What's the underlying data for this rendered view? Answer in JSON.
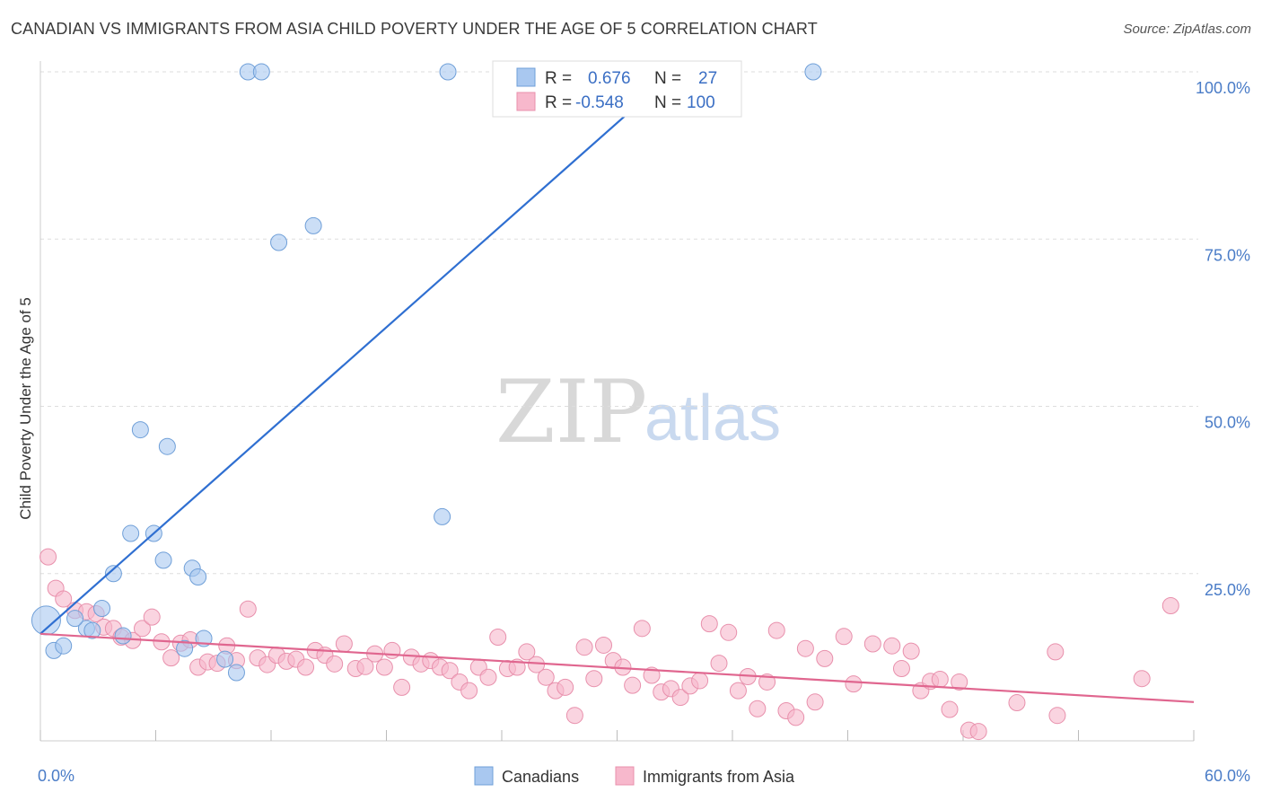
{
  "title": "CANADIAN VS IMMIGRANTS FROM ASIA CHILD POVERTY UNDER THE AGE OF 5 CORRELATION CHART",
  "source": "Source: ZipAtlas.com",
  "watermark": {
    "zip": "ZIP",
    "atlas": "atlas"
  },
  "legend": {
    "rows": [
      {
        "r_label": "R =",
        "r_value": "0.676",
        "n_label": "N =",
        "n_value": "27",
        "color": "#a9c8f0"
      },
      {
        "r_label": "R =",
        "r_value": "-0.548",
        "n_label": "N =",
        "n_value": "100",
        "color": "#f7b8cc"
      }
    ]
  },
  "chart_data": {
    "type": "scatter",
    "title": "CANADIAN VS IMMIGRANTS FROM ASIA CHILD POVERTY UNDER THE AGE OF 5 CORRELATION CHART",
    "xlabel": "",
    "ylabel": "Child Poverty Under the Age of 5",
    "xlim": [
      0,
      60
    ],
    "ylim": [
      0,
      105
    ],
    "x_tick_labels": [
      {
        "value": 0,
        "label": "0.0%"
      },
      {
        "value": 60,
        "label": "60.0%"
      }
    ],
    "x_minor_ticks": [
      0,
      6,
      12,
      18,
      24,
      30,
      36,
      42,
      48,
      54,
      60
    ],
    "y_ticks": [
      {
        "value": 25,
        "label": "25.0%"
      },
      {
        "value": 50,
        "label": "50.0%"
      },
      {
        "value": 75,
        "label": "75.0%"
      },
      {
        "value": 100,
        "label": "100.0%"
      }
    ],
    "grid": "horizontal-dashed",
    "series": [
      {
        "name": "Canadians",
        "color": "#a9c8f0",
        "stroke": "#6f9fd8",
        "trend_color": "#2f6fd1",
        "trend": {
          "x": [
            0,
            33.0
          ],
          "y": [
            16.0,
            100.0
          ]
        },
        "points": [
          {
            "x": 0.3,
            "y": 18.0,
            "big": true
          },
          {
            "x": 0.7,
            "y": 13.5
          },
          {
            "x": 1.2,
            "y": 14.2
          },
          {
            "x": 2.4,
            "y": 16.8
          },
          {
            "x": 1.8,
            "y": 18.3
          },
          {
            "x": 2.7,
            "y": 16.5
          },
          {
            "x": 3.2,
            "y": 19.8
          },
          {
            "x": 3.8,
            "y": 25.0
          },
          {
            "x": 4.3,
            "y": 15.7
          },
          {
            "x": 4.7,
            "y": 31.0
          },
          {
            "x": 5.2,
            "y": 46.5
          },
          {
            "x": 5.9,
            "y": 31.0
          },
          {
            "x": 6.4,
            "y": 27.0
          },
          {
            "x": 6.6,
            "y": 44.0
          },
          {
            "x": 7.5,
            "y": 13.8
          },
          {
            "x": 7.9,
            "y": 25.8
          },
          {
            "x": 8.2,
            "y": 24.5
          },
          {
            "x": 8.5,
            "y": 15.3
          },
          {
            "x": 9.6,
            "y": 12.2
          },
          {
            "x": 10.2,
            "y": 10.2
          },
          {
            "x": 10.8,
            "y": 100.0
          },
          {
            "x": 11.5,
            "y": 100.0
          },
          {
            "x": 12.4,
            "y": 74.5
          },
          {
            "x": 14.2,
            "y": 77.0
          },
          {
            "x": 20.9,
            "y": 33.5
          },
          {
            "x": 21.2,
            "y": 100.0
          },
          {
            "x": 40.2,
            "y": 100.0
          }
        ]
      },
      {
        "name": "Immigrants from Asia",
        "color": "#f7b8cc",
        "stroke": "#e890ac",
        "trend_color": "#e0668f",
        "trend": {
          "x": [
            0,
            60
          ],
          "y": [
            16.0,
            5.8
          ]
        },
        "points": [
          {
            "x": 0.4,
            "y": 27.5
          },
          {
            "x": 0.8,
            "y": 22.8
          },
          {
            "x": 1.2,
            "y": 21.2
          },
          {
            "x": 1.8,
            "y": 19.5
          },
          {
            "x": 2.4,
            "y": 19.3
          },
          {
            "x": 2.9,
            "y": 19.0
          },
          {
            "x": 3.3,
            "y": 17.0
          },
          {
            "x": 3.8,
            "y": 16.8
          },
          {
            "x": 4.2,
            "y": 15.5
          },
          {
            "x": 4.8,
            "y": 15.0
          },
          {
            "x": 5.3,
            "y": 16.8
          },
          {
            "x": 5.8,
            "y": 18.5
          },
          {
            "x": 6.3,
            "y": 14.8
          },
          {
            "x": 6.8,
            "y": 12.4
          },
          {
            "x": 7.3,
            "y": 14.6
          },
          {
            "x": 7.8,
            "y": 15.1
          },
          {
            "x": 8.2,
            "y": 11.0
          },
          {
            "x": 8.7,
            "y": 11.8
          },
          {
            "x": 9.2,
            "y": 11.6
          },
          {
            "x": 9.7,
            "y": 14.2
          },
          {
            "x": 10.2,
            "y": 12.0
          },
          {
            "x": 10.8,
            "y": 19.7
          },
          {
            "x": 11.3,
            "y": 12.4
          },
          {
            "x": 11.8,
            "y": 11.4
          },
          {
            "x": 12.3,
            "y": 12.8
          },
          {
            "x": 12.8,
            "y": 11.9
          },
          {
            "x": 13.3,
            "y": 12.2
          },
          {
            "x": 13.8,
            "y": 11.0
          },
          {
            "x": 14.3,
            "y": 13.5
          },
          {
            "x": 14.8,
            "y": 12.8
          },
          {
            "x": 15.3,
            "y": 11.5
          },
          {
            "x": 15.8,
            "y": 14.5
          },
          {
            "x": 16.4,
            "y": 10.8
          },
          {
            "x": 16.9,
            "y": 11.1
          },
          {
            "x": 17.4,
            "y": 13.0
          },
          {
            "x": 17.9,
            "y": 11.0
          },
          {
            "x": 18.3,
            "y": 13.5
          },
          {
            "x": 18.8,
            "y": 8.0
          },
          {
            "x": 19.3,
            "y": 12.5
          },
          {
            "x": 19.8,
            "y": 11.5
          },
          {
            "x": 20.3,
            "y": 12.0
          },
          {
            "x": 20.8,
            "y": 11.0
          },
          {
            "x": 21.3,
            "y": 10.5
          },
          {
            "x": 21.8,
            "y": 8.8
          },
          {
            "x": 22.3,
            "y": 7.5
          },
          {
            "x": 22.8,
            "y": 11.0
          },
          {
            "x": 23.3,
            "y": 9.5
          },
          {
            "x": 23.8,
            "y": 15.5
          },
          {
            "x": 24.3,
            "y": 10.8
          },
          {
            "x": 24.8,
            "y": 11.0
          },
          {
            "x": 25.3,
            "y": 13.3
          },
          {
            "x": 25.8,
            "y": 11.4
          },
          {
            "x": 26.3,
            "y": 9.5
          },
          {
            "x": 26.8,
            "y": 7.5
          },
          {
            "x": 27.3,
            "y": 8.0
          },
          {
            "x": 27.8,
            "y": 3.8
          },
          {
            "x": 28.3,
            "y": 14.0
          },
          {
            "x": 28.8,
            "y": 9.3
          },
          {
            "x": 29.3,
            "y": 14.3
          },
          {
            "x": 29.8,
            "y": 12.0
          },
          {
            "x": 30.3,
            "y": 11.0
          },
          {
            "x": 30.8,
            "y": 8.3
          },
          {
            "x": 31.3,
            "y": 16.8
          },
          {
            "x": 31.8,
            "y": 9.8
          },
          {
            "x": 32.3,
            "y": 7.3
          },
          {
            "x": 32.8,
            "y": 7.8
          },
          {
            "x": 33.3,
            "y": 6.5
          },
          {
            "x": 33.8,
            "y": 8.2
          },
          {
            "x": 34.3,
            "y": 9.0
          },
          {
            "x": 34.8,
            "y": 17.5
          },
          {
            "x": 35.3,
            "y": 11.6
          },
          {
            "x": 35.8,
            "y": 16.2
          },
          {
            "x": 36.3,
            "y": 7.5
          },
          {
            "x": 36.8,
            "y": 9.6
          },
          {
            "x": 37.3,
            "y": 4.8
          },
          {
            "x": 37.8,
            "y": 8.8
          },
          {
            "x": 38.3,
            "y": 16.5
          },
          {
            "x": 38.8,
            "y": 4.5
          },
          {
            "x": 39.3,
            "y": 3.5
          },
          {
            "x": 39.8,
            "y": 13.8
          },
          {
            "x": 40.3,
            "y": 5.8
          },
          {
            "x": 40.8,
            "y": 12.3
          },
          {
            "x": 41.8,
            "y": 15.6
          },
          {
            "x": 42.3,
            "y": 8.5
          },
          {
            "x": 43.3,
            "y": 14.5
          },
          {
            "x": 44.3,
            "y": 14.2
          },
          {
            "x": 44.8,
            "y": 10.8
          },
          {
            "x": 45.3,
            "y": 13.4
          },
          {
            "x": 45.8,
            "y": 7.5
          },
          {
            "x": 46.3,
            "y": 8.9
          },
          {
            "x": 46.8,
            "y": 9.2
          },
          {
            "x": 47.3,
            "y": 4.7
          },
          {
            "x": 47.8,
            "y": 8.8
          },
          {
            "x": 48.3,
            "y": 1.6
          },
          {
            "x": 48.8,
            "y": 1.4
          },
          {
            "x": 50.8,
            "y": 5.7
          },
          {
            "x": 52.8,
            "y": 13.3
          },
          {
            "x": 52.9,
            "y": 3.8
          },
          {
            "x": 57.3,
            "y": 9.3
          },
          {
            "x": 58.8,
            "y": 20.2
          }
        ]
      }
    ]
  }
}
